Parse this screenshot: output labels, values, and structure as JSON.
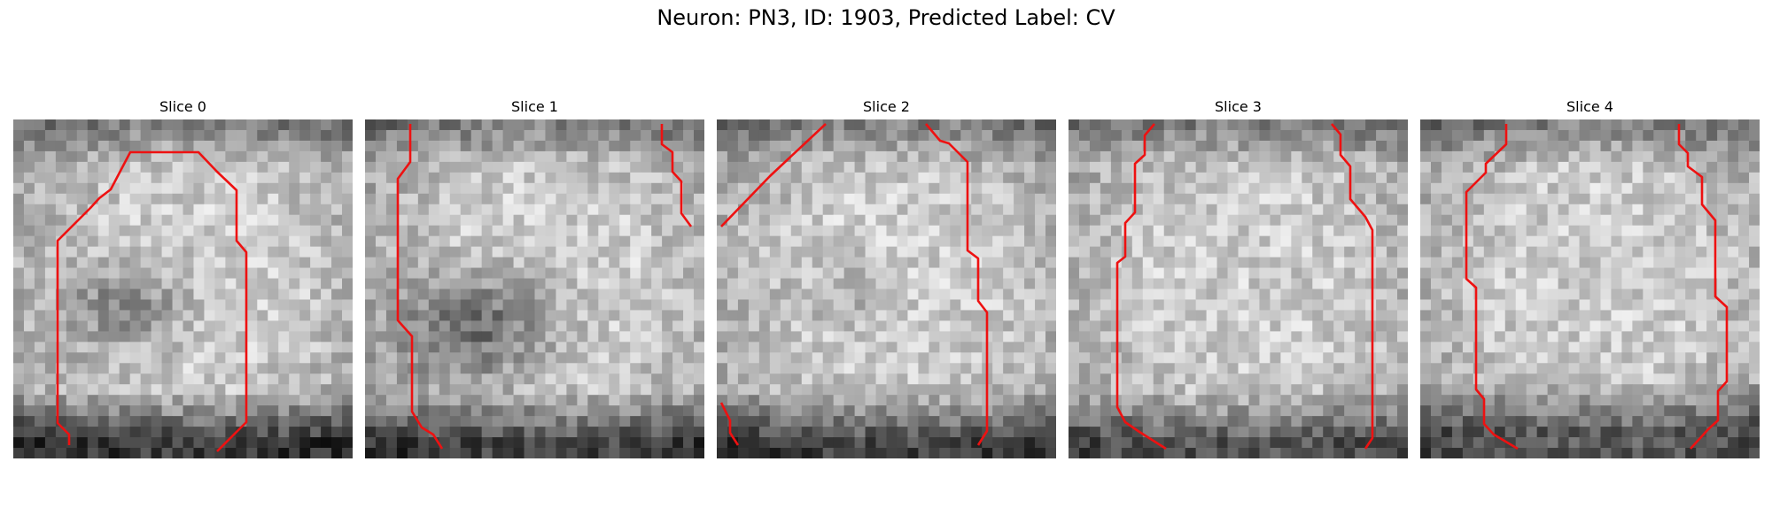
{
  "figure": {
    "title": "Neuron: PN3, ID: 1903, Predicted Label: CV"
  },
  "panels": [
    {
      "title": "Slice 0"
    },
    {
      "title": "Slice 1"
    },
    {
      "title": "Slice 2"
    },
    {
      "title": "Slice 3"
    },
    {
      "title": "Slice 4"
    }
  ],
  "colors": {
    "contour": "#ee1111"
  }
}
